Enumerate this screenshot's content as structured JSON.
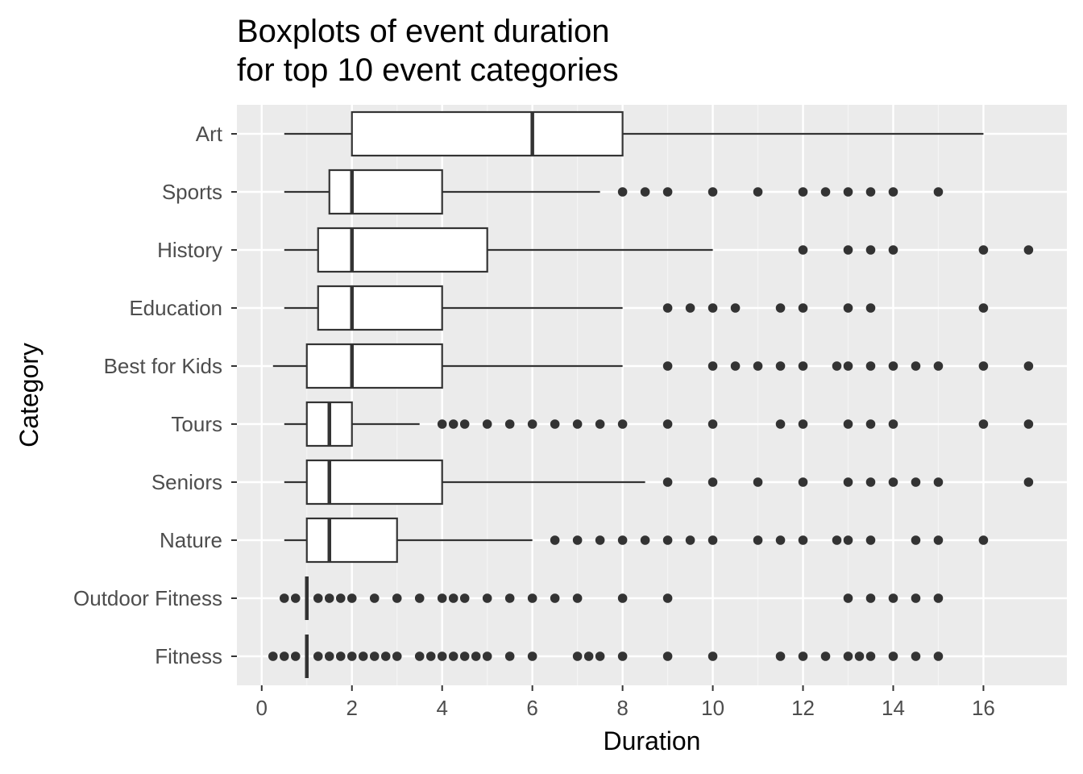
{
  "chart_data": {
    "type": "boxplot",
    "orientation": "horizontal",
    "title_lines": [
      "Boxplots of event duration",
      "for top 10 event categories"
    ],
    "xlabel": "Duration",
    "ylabel": "Category",
    "xlim": [
      -0.55,
      17.85
    ],
    "x_ticks": [
      0,
      2,
      4,
      6,
      8,
      10,
      12,
      14,
      16
    ],
    "x_tick_labels": [
      "0",
      "2",
      "4",
      "6",
      "8",
      "10",
      "12",
      "14",
      "16"
    ],
    "grid": true,
    "legend": "none",
    "colors": {
      "panel_background": "#ebebeb",
      "grid_major": "#ffffff",
      "grid_minor": "#f5f5f5",
      "box_fill": "#ffffff",
      "box_line": "#333333",
      "outlier": "#333333",
      "tick_text": "#4d4d4d"
    },
    "categories": [
      "Art",
      "Sports",
      "History",
      "Education",
      "Best for Kids",
      "Tours",
      "Seniors",
      "Nature",
      "Outdoor Fitness",
      "Fitness"
    ],
    "boxes": [
      {
        "category": "Art",
        "whisker_low": 0.5,
        "q1": 2,
        "median": 6,
        "q3": 8,
        "whisker_high": 16,
        "outliers": []
      },
      {
        "category": "Sports",
        "whisker_low": 0.5,
        "q1": 1.5,
        "median": 2,
        "q3": 4,
        "whisker_high": 7.5,
        "outliers": [
          8,
          8.5,
          9,
          10,
          11,
          12,
          12.5,
          13,
          13.5,
          14,
          15
        ]
      },
      {
        "category": "History",
        "whisker_low": 0.5,
        "q1": 1.25,
        "median": 2,
        "q3": 5,
        "whisker_high": 10,
        "outliers": [
          12,
          13,
          13.5,
          14,
          16,
          17
        ]
      },
      {
        "category": "Education",
        "whisker_low": 0.5,
        "q1": 1.25,
        "median": 2,
        "q3": 4,
        "whisker_high": 8,
        "outliers": [
          9,
          9.5,
          10,
          10.5,
          11.5,
          12,
          13,
          13.5,
          16
        ]
      },
      {
        "category": "Best for Kids",
        "whisker_low": 0.25,
        "q1": 1,
        "median": 2,
        "q3": 4,
        "whisker_high": 8,
        "outliers": [
          9,
          10,
          10.5,
          11,
          11.5,
          12,
          12.75,
          13,
          13.5,
          14,
          14.5,
          15,
          16,
          17
        ]
      },
      {
        "category": "Tours",
        "whisker_low": 0.5,
        "q1": 1,
        "median": 1.5,
        "q3": 2,
        "whisker_high": 3.5,
        "outliers": [
          4,
          4.25,
          4.5,
          5,
          5.5,
          6,
          6.5,
          7,
          7.5,
          8,
          9,
          10,
          11.5,
          12,
          13,
          13.5,
          14,
          16,
          17
        ]
      },
      {
        "category": "Seniors",
        "whisker_low": 0.5,
        "q1": 1,
        "median": 1.5,
        "q3": 4,
        "whisker_high": 8.5,
        "outliers": [
          9,
          10,
          11,
          12,
          13,
          13.5,
          14,
          14.5,
          15,
          17
        ]
      },
      {
        "category": "Nature",
        "whisker_low": 0.5,
        "q1": 1,
        "median": 1.5,
        "q3": 3,
        "whisker_high": 6,
        "outliers": [
          6.5,
          7,
          7.5,
          8,
          8.5,
          9,
          9.5,
          10,
          11,
          11.5,
          12,
          12.75,
          13,
          13.5,
          14.5,
          15,
          16
        ]
      },
      {
        "category": "Outdoor Fitness",
        "whisker_low": 1,
        "q1": 1,
        "median": 1,
        "q3": 1,
        "whisker_high": 1,
        "outliers": [
          0.5,
          0.75,
          1.25,
          1.5,
          1.75,
          2,
          2.5,
          3,
          3.5,
          4,
          4.25,
          4.5,
          5,
          5.5,
          6,
          6.5,
          7,
          8,
          9,
          13,
          13.5,
          14,
          14.5,
          15
        ]
      },
      {
        "category": "Fitness",
        "whisker_low": 1,
        "q1": 1,
        "median": 1,
        "q3": 1,
        "whisker_high": 1,
        "outliers": [
          0.25,
          0.5,
          0.75,
          1.25,
          1.5,
          1.75,
          2,
          2.25,
          2.5,
          2.75,
          3,
          3.5,
          3.75,
          4,
          4.25,
          4.5,
          4.75,
          5,
          5.5,
          6,
          7,
          7.25,
          7.5,
          8,
          9,
          10,
          11.5,
          12,
          12.5,
          13,
          13.25,
          13.5,
          14,
          14.5,
          15
        ]
      }
    ]
  }
}
